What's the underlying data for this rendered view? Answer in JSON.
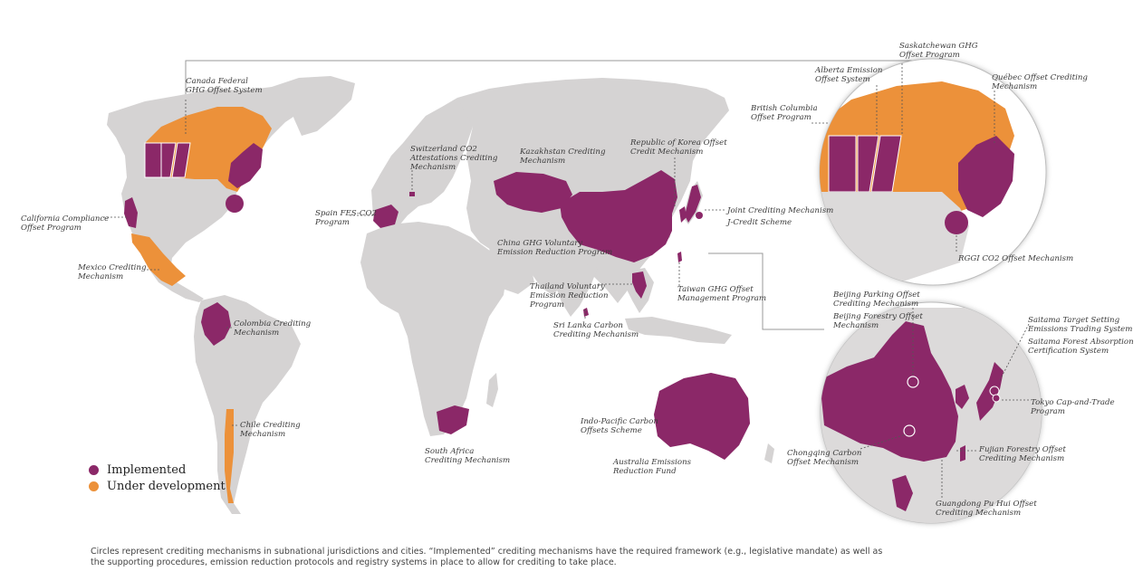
{
  "colors": {
    "implemented": "#8b2868",
    "under_development": "#ec913a",
    "land": "#d5d3d3",
    "zoom_land": "#dcdada"
  },
  "legend": {
    "implemented": "Implemented",
    "under_development": "Under development"
  },
  "note": "Circles represent crediting mechanisms in subnational jurisdictions and cities. “Implemented” crediting mechanisms have the required framework (e.g., legislative mandate) as well as the supporting procedures, emission reduction protocols and registry systems in place to allow for crediting to take place.",
  "labels": {
    "canada_federal": [
      "Canada Federal",
      "GHG Offset System"
    ],
    "california": [
      "California Compliance",
      "Offset Program"
    ],
    "mexico": [
      "Mexico Crediting",
      "Mechanism"
    ],
    "colombia": [
      "Colombia Crediting",
      "Mechanism"
    ],
    "chile": [
      "Chile Crediting",
      "Mechanism"
    ],
    "spain": [
      "Spain FES-CO2",
      "Program"
    ],
    "switzerland": [
      "Switzerland CO2",
      "Attestations Crediting",
      "Mechanism"
    ],
    "kazakhstan": [
      "Kazakhstan Crediting",
      "Mechanism"
    ],
    "korea": [
      "Republic of Korea Offset",
      "Credit Mechanism"
    ],
    "jcm": [
      "Joint Crediting Mechanism"
    ],
    "jcredit": [
      "J-Credit Scheme"
    ],
    "china": [
      "China GHG Voluntary",
      "Emission Reduction Program"
    ],
    "thailand": [
      "Thailand Voluntary",
      "Emission Reduction",
      "Program"
    ],
    "taiwan": [
      "Taiwan GHG Offset",
      "Management Program"
    ],
    "srilanka": [
      "Sri Lanka Carbon",
      "Crediting Mechanism"
    ],
    "southafrica": [
      "South Africa",
      "Crediting Mechanism"
    ],
    "indopacific": [
      "Indo-Pacific Carbon",
      "Offsets Scheme"
    ],
    "australia": [
      "Australia Emissions",
      "Reduction Fund"
    ],
    "saskatchewan": [
      "Saskatchewan GHG",
      "Offset Program"
    ],
    "alberta": [
      "Alberta Emission",
      "Offset System"
    ],
    "quebec": [
      "Québec Offset Crediting",
      "Mechanism"
    ],
    "bc": [
      "British Columbia",
      "Offset Program"
    ],
    "rggi": [
      "RGGI CO2 Offset Mechanism"
    ],
    "beijing_parking": [
      "Beijing Parking Offset",
      "Crediting Mechanism"
    ],
    "beijing_forestry": [
      "Beijing Forestry Offset",
      "Mechanism"
    ],
    "saitama_target": [
      "Saitama Target Setting",
      "Emissions Trading System"
    ],
    "saitama_forest": [
      "Saitama Forest Absorption",
      "Certification System"
    ],
    "tokyo": [
      "Tokyo Cap-and-Trade",
      "Program"
    ],
    "chongqing": [
      "Chongqing Carbon",
      "Offset Mechanism"
    ],
    "fujian": [
      "Fujian Forestry Offset",
      "Crediting Mechanism"
    ],
    "guangdong": [
      "Guangdong Pu Hui Offset",
      "Crediting Mechanism"
    ]
  }
}
